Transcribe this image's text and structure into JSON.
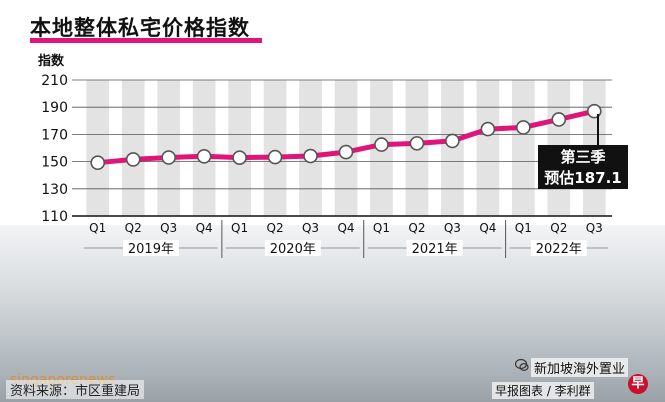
{
  "title": "本地整体私宅价格指数",
  "ylabel": "指数",
  "callout": {
    "line1": "第三季",
    "line2": "预估187.1"
  },
  "source": "资料来源：市区重建局",
  "credit": "早报图表 / 李利群",
  "brand": "新加坡海外置业",
  "logo_char": "早",
  "watermark": "singaporenews",
  "colors": {
    "line": "#e0157a",
    "band": "#e3e3e3",
    "title_bar": "#e0157a"
  },
  "chart_data": {
    "type": "line",
    "title": "本地整体私宅价格指数",
    "ylabel": "指数",
    "xlabel": "",
    "ylim": [
      110,
      210
    ],
    "yticks": [
      110,
      130,
      150,
      170,
      190,
      210
    ],
    "grid": true,
    "categories": [
      "Q1",
      "Q2",
      "Q3",
      "Q4",
      "Q1",
      "Q2",
      "Q3",
      "Q4",
      "Q1",
      "Q2",
      "Q3",
      "Q4",
      "Q1",
      "Q2",
      "Q3"
    ],
    "years": [
      {
        "label": "2019年",
        "start": 0,
        "end": 3
      },
      {
        "label": "2020年",
        "start": 4,
        "end": 7
      },
      {
        "label": "2021年",
        "start": 8,
        "end": 11
      },
      {
        "label": "2022年",
        "start": 12,
        "end": 14
      }
    ],
    "values": [
      149.2,
      151.6,
      153.0,
      153.9,
      152.9,
      153.3,
      154.1,
      157.0,
      162.5,
      163.4,
      165.2,
      173.9,
      175.1,
      181.0,
      187.1
    ]
  }
}
